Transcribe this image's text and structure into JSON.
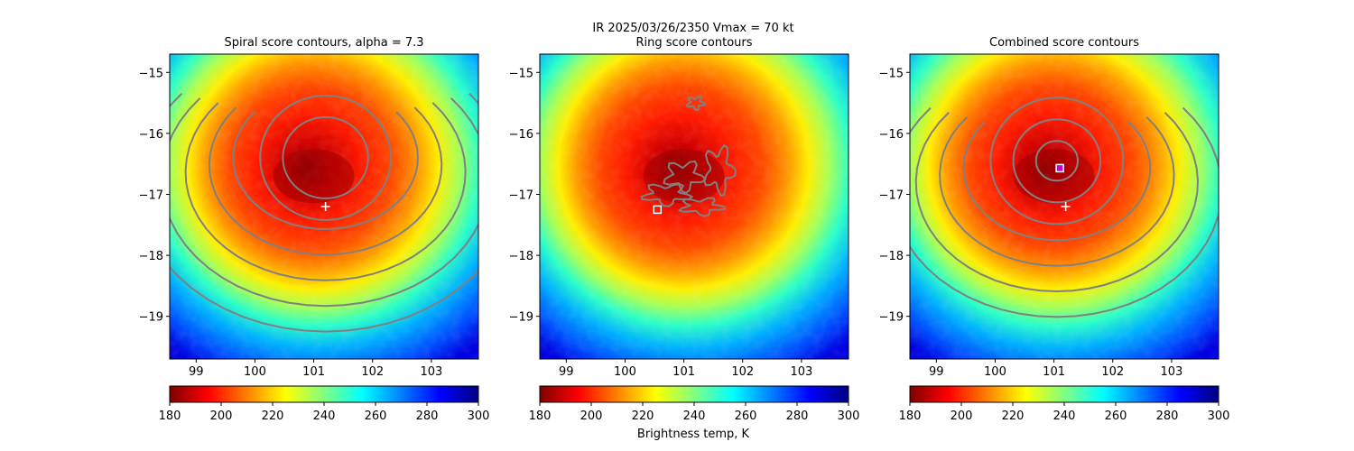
{
  "figure": {
    "suptitle_line1": "IR  2025/03/26/2350    Vmax = 70 kt",
    "colorbar_label": "Brightness temp, K"
  },
  "colormap": {
    "name": "jet_r",
    "stops": [
      "#800000",
      "#ff0000",
      "#ff8000",
      "#ffff00",
      "#80ff80",
      "#00ffff",
      "#0080ff",
      "#0000ff",
      "#000080"
    ],
    "contour_color": "#808080",
    "marker_color": "#ffffff"
  },
  "chart_data": [
    {
      "type": "heatmap",
      "title": "Spiral score contours, alpha =  7.3",
      "xlim": [
        98.55,
        103.8
      ],
      "ylim": [
        -19.7,
        -14.7
      ],
      "xticks": [
        99,
        100,
        101,
        102,
        103
      ],
      "yticks": [
        -15,
        -16,
        -17,
        -18,
        -19
      ],
      "storm_center": [
        101.35,
        -16.55
      ],
      "markers": [
        {
          "symbol": "plus",
          "x": 101.2,
          "y": -17.2
        }
      ],
      "contours": "spiral",
      "colorbar": {
        "ticks": [
          180,
          200,
          220,
          240,
          260,
          280,
          300
        ],
        "range": [
          180,
          300
        ]
      }
    },
    {
      "type": "heatmap",
      "title": "Ring score contours",
      "xlim": [
        98.55,
        103.8
      ],
      "ylim": [
        -19.7,
        -14.7
      ],
      "xticks": [
        99,
        100,
        101,
        102,
        103
      ],
      "yticks": [
        -15,
        -16,
        -17,
        -18,
        -19
      ],
      "storm_center": [
        101.35,
        -16.55
      ],
      "markers": [
        {
          "symbol": "square",
          "x": 100.55,
          "y": -17.25
        }
      ],
      "contours": "ring",
      "colorbar": {
        "ticks": [
          180,
          200,
          220,
          240,
          260,
          280,
          300
        ],
        "range": [
          180,
          300
        ]
      }
    },
    {
      "type": "heatmap",
      "title": "Combined score contours",
      "xlim": [
        98.55,
        103.8
      ],
      "ylim": [
        -19.7,
        -14.7
      ],
      "xticks": [
        99,
        100,
        101,
        102,
        103
      ],
      "yticks": [
        -15,
        -16,
        -17,
        -18,
        -19
      ],
      "storm_center": [
        101.35,
        -16.55
      ],
      "markers": [
        {
          "symbol": "plus",
          "x": 101.2,
          "y": -17.2
        },
        {
          "symbol": "square_magenta",
          "x": 101.1,
          "y": -16.57
        }
      ],
      "contours": "combined",
      "colorbar": {
        "ticks": [
          180,
          200,
          220,
          240,
          260,
          280,
          300
        ],
        "range": [
          180,
          300
        ]
      }
    }
  ]
}
